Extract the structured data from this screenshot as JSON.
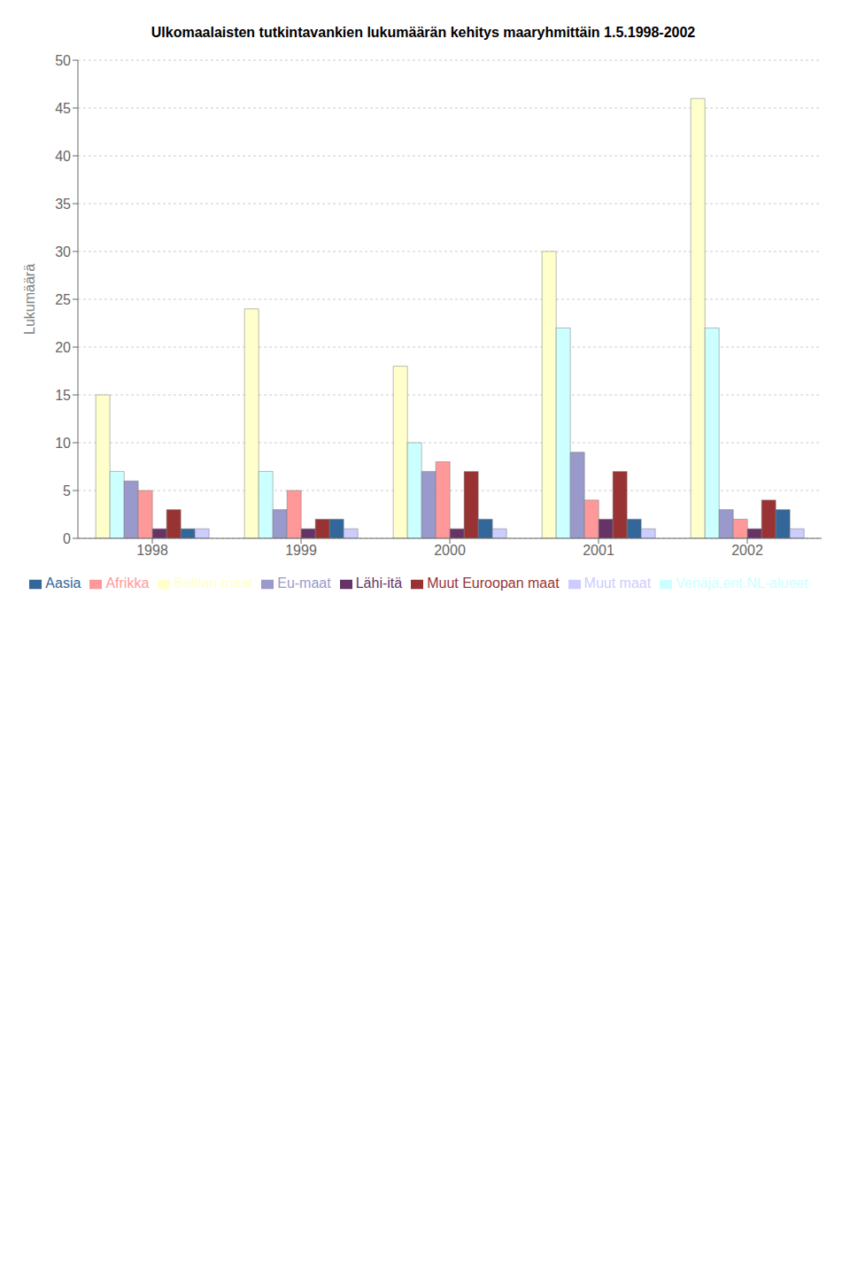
{
  "chart_data": {
    "type": "bar",
    "title": "Ulkomaalaisten tutkintavankien lukumäärän kehitys maaryhmittäin 1.5.1998-2002",
    "ylabel": "Lukumäärä",
    "categories": [
      "1998",
      "1999",
      "2000",
      "2001",
      "2002"
    ],
    "series": [
      {
        "name": "Baltian maat",
        "color": "#FFFFCC",
        "values": [
          15,
          24,
          18,
          30,
          46
        ]
      },
      {
        "name": "Venäjä,ent.NL-alueet",
        "color": "#CCFFFF",
        "values": [
          7,
          7,
          10,
          22,
          22
        ]
      },
      {
        "name": "Eu-maat",
        "color": "#9999CC",
        "values": [
          6,
          3,
          7,
          9,
          3
        ]
      },
      {
        "name": "Afrikka",
        "color": "#FF9999",
        "values": [
          5,
          5,
          8,
          4,
          2
        ]
      },
      {
        "name": "Lähi-itä",
        "color": "#663366",
        "values": [
          1,
          1,
          1,
          2,
          1
        ]
      },
      {
        "name": "Muut Euroopan maat",
        "color": "#993333",
        "values": [
          3,
          2,
          7,
          7,
          4
        ]
      },
      {
        "name": "Aasia",
        "color": "#336699",
        "values": [
          1,
          2,
          2,
          2,
          3
        ]
      },
      {
        "name": "Muut maat",
        "color": "#CCCCFF",
        "values": [
          1,
          1,
          1,
          1,
          1
        ]
      }
    ],
    "ylim": [
      0,
      50
    ],
    "yticks": [
      0,
      5,
      10,
      15,
      20,
      25,
      30,
      35,
      40,
      45,
      50
    ],
    "grid": true,
    "legend": "bottom"
  }
}
